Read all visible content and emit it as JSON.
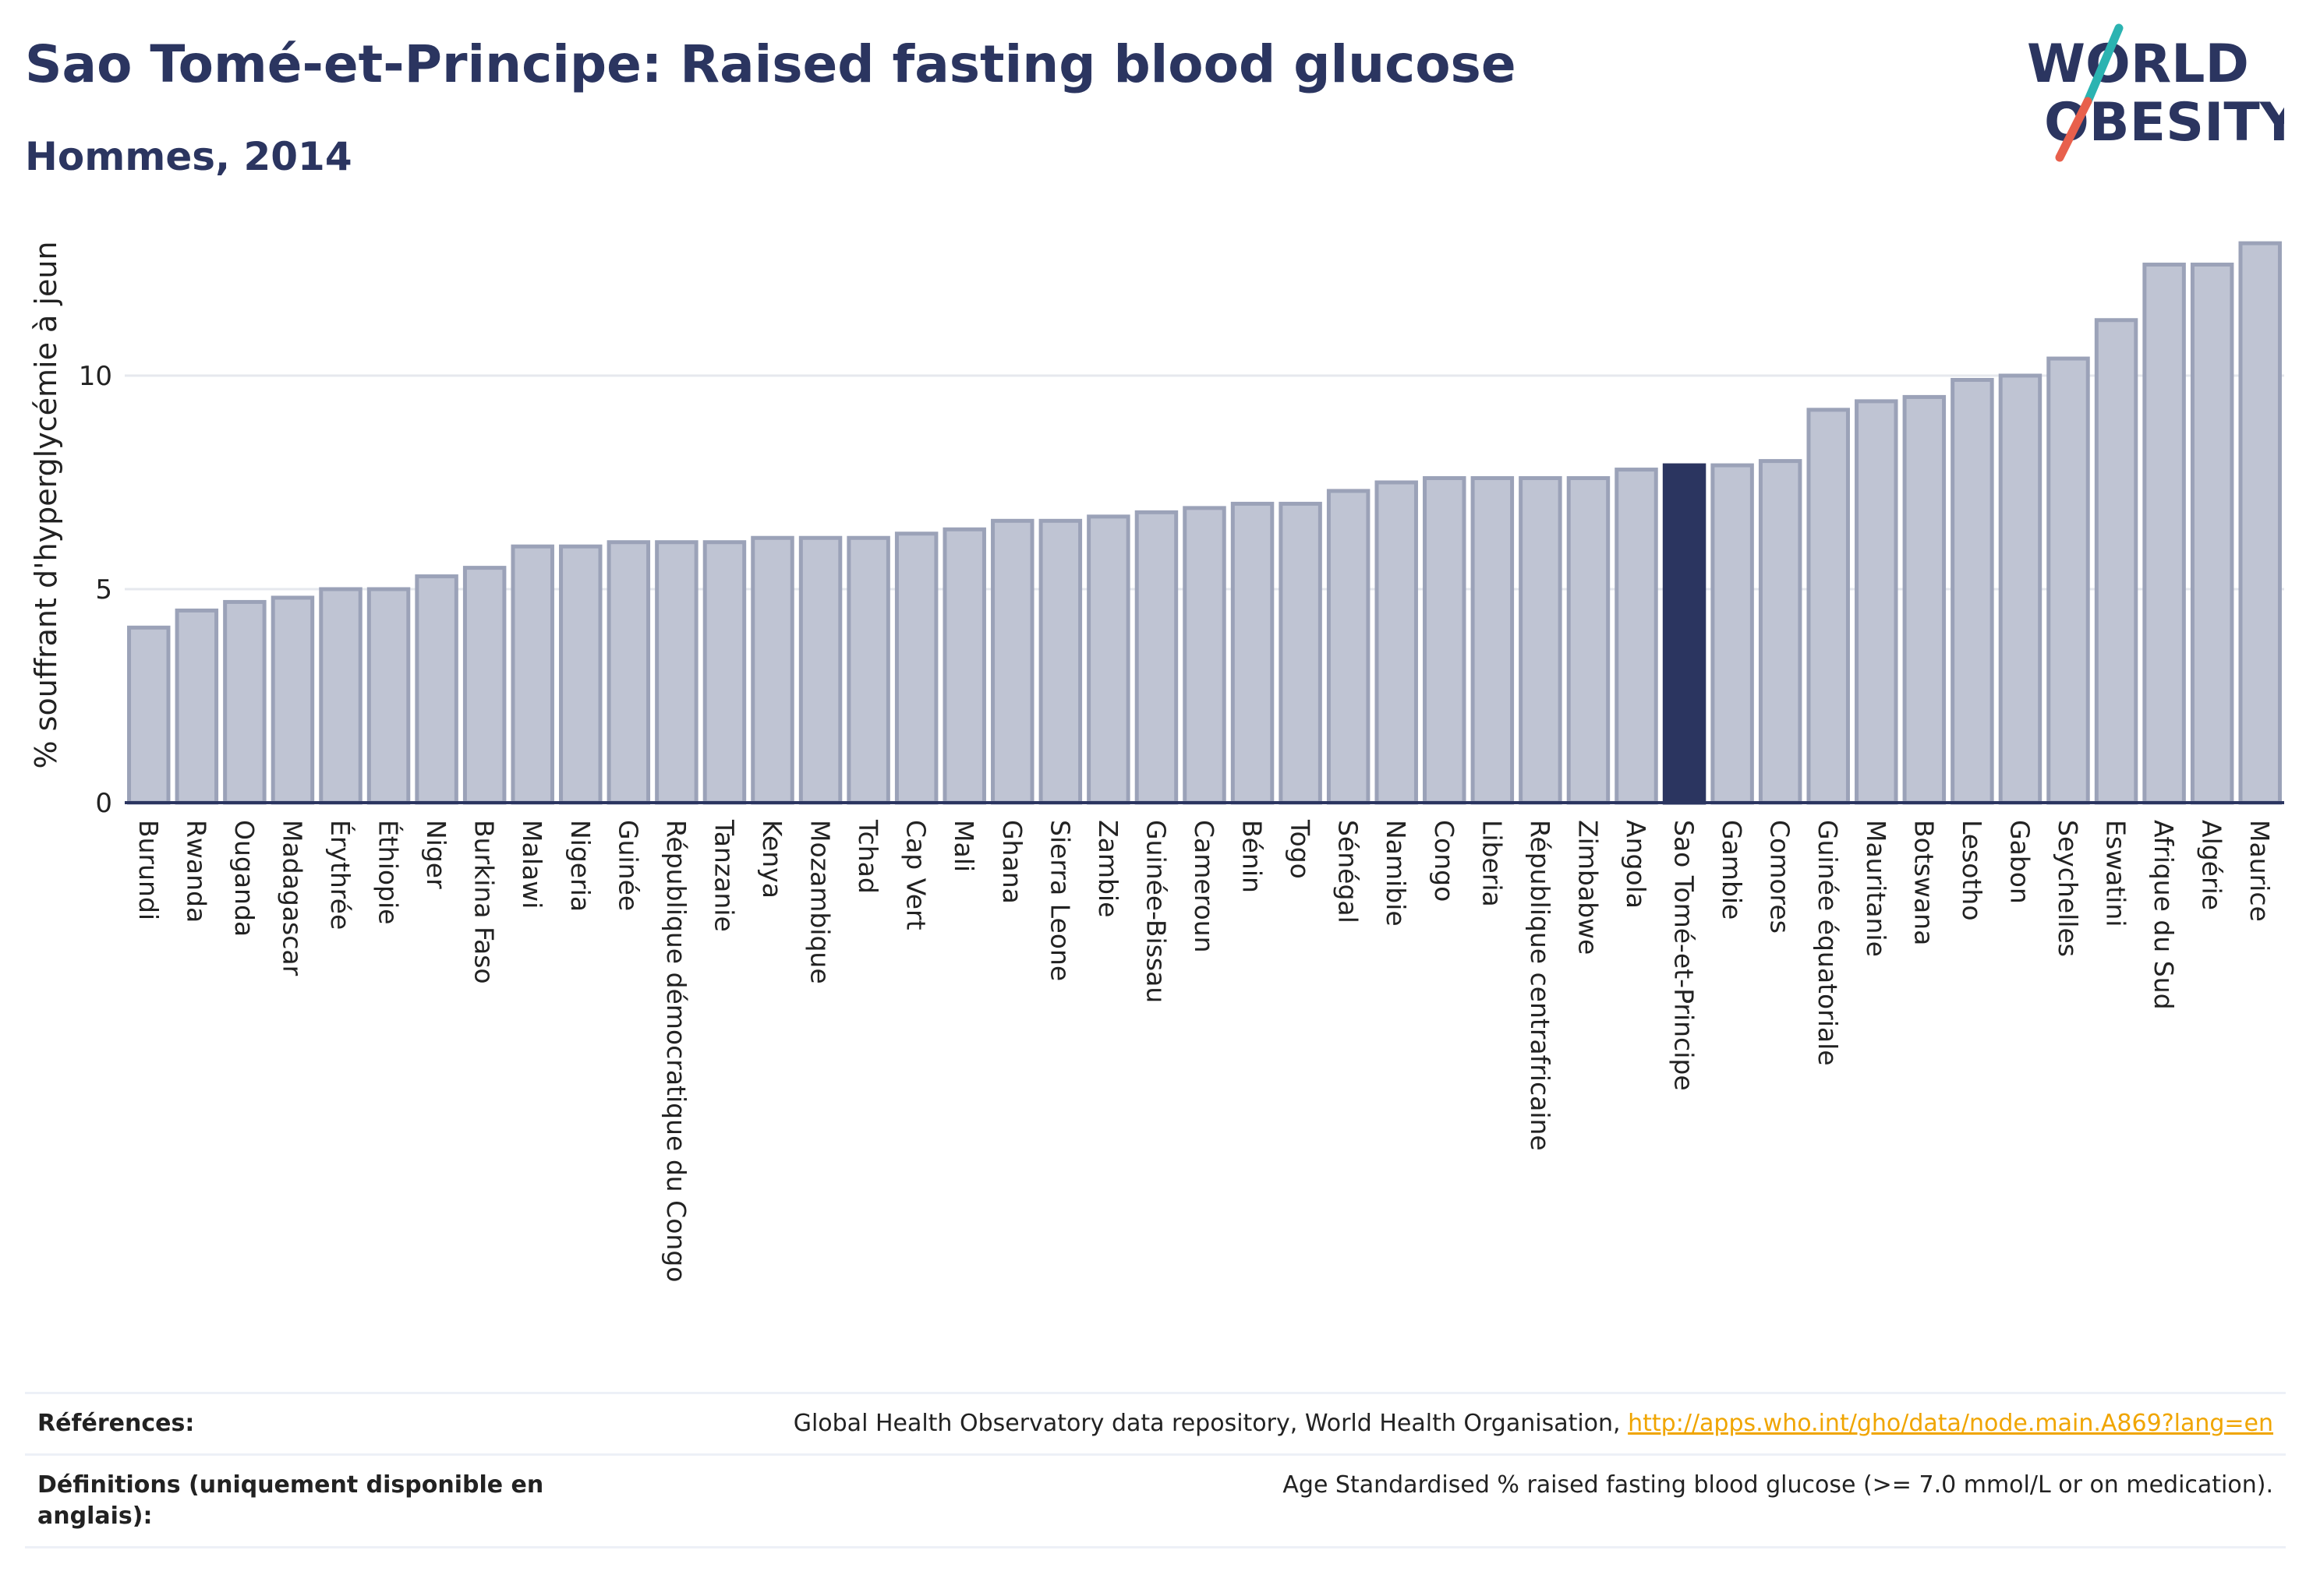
{
  "header": {
    "title": "Sao Tomé-et-Principe: Raised fasting blood glucose",
    "subtitle": "Hommes, 2014"
  },
  "logo": {
    "line1": "WORLD",
    "line2": "OBESITY"
  },
  "chart_data": {
    "type": "bar",
    "title": "Sao Tomé-et-Principe: Raised fasting blood glucose",
    "subtitle": "Hommes, 2014",
    "xlabel": "",
    "ylabel": "% souffrant d'hyperglycémie à jeun",
    "ylim": [
      0,
      13.5
    ],
    "yticks": [
      0,
      5,
      10
    ],
    "grid": true,
    "highlight": "Sao Tomé-et-Principe",
    "colors": {
      "bar": "#bfc4d3",
      "bar_border": "#9ba2b8",
      "highlight": "#2b3560",
      "grid": "#e6e8ee",
      "axis": "#2b3560"
    },
    "categories": [
      "Burundi",
      "Rwanda",
      "Ouganda",
      "Madagascar",
      "Érythrée",
      "Éthiopie",
      "Niger",
      "Burkina Faso",
      "Malawi",
      "Nigeria",
      "Guinée",
      "République démocratique du Congo",
      "Tanzanie",
      "Kenya",
      "Mozambique",
      "Tchad",
      "Cap Vert",
      "Mali",
      "Ghana",
      "Sierra Leone",
      "Zambie",
      "Guinée-Bissau",
      "Cameroun",
      "Bénin",
      "Togo",
      "Sénégal",
      "Namibie",
      "Congo",
      "Liberia",
      "République centrafricaine",
      "Zimbabwe",
      "Angola",
      "Sao Tomé-et-Principe",
      "Gambie",
      "Comores",
      "Guinée équatoriale",
      "Mauritanie",
      "Botswana",
      "Lesotho",
      "Gabon",
      "Seychelles",
      "Eswatini",
      "Afrique du Sud",
      "Algérie",
      "Maurice"
    ],
    "values": [
      4.1,
      4.5,
      4.7,
      4.8,
      5.0,
      5.0,
      5.3,
      5.5,
      6.0,
      6.0,
      6.1,
      6.1,
      6.1,
      6.2,
      6.2,
      6.2,
      6.3,
      6.4,
      6.6,
      6.6,
      6.7,
      6.8,
      6.9,
      7.0,
      7.0,
      7.3,
      7.5,
      7.6,
      7.6,
      7.6,
      7.6,
      7.8,
      7.9,
      7.9,
      8.0,
      9.2,
      9.4,
      9.5,
      9.9,
      10.0,
      10.4,
      11.3,
      12.6,
      12.6,
      13.1
    ]
  },
  "footer": {
    "references_label": "Références:",
    "references_text": "Global Health Observatory data repository, World Health Organisation,",
    "references_link": "http://apps.who.int/gho/data/node.main.A869?lang=en",
    "definitions_label": "Définitions (uniquement disponible en anglais):",
    "definitions_text": "Age Standardised % raised fasting blood glucose (>= 7.0 mmol/L or on medication)."
  }
}
